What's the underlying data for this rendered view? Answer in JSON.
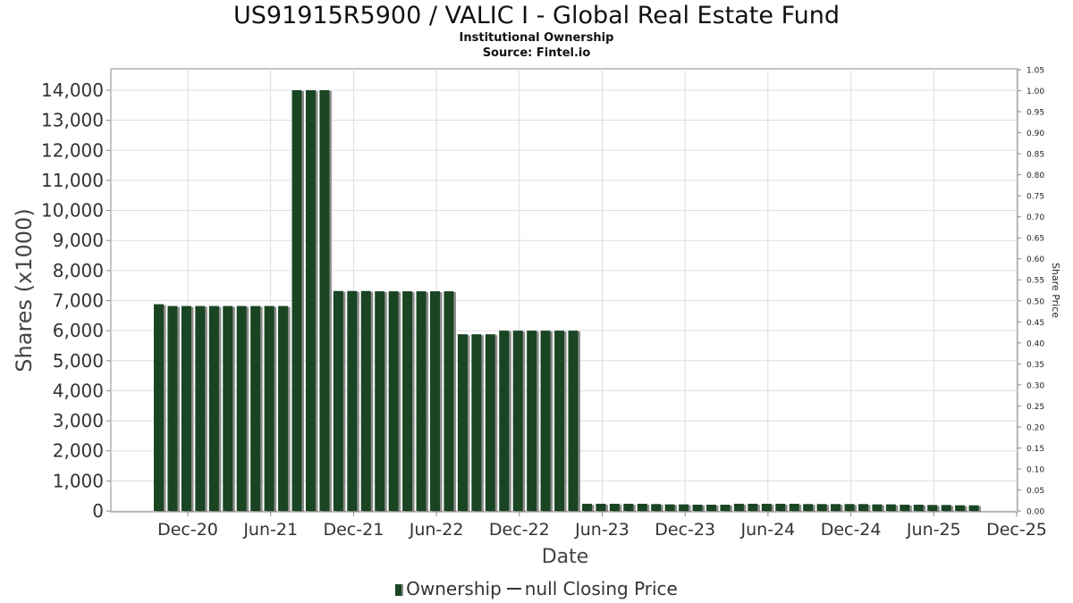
{
  "title": "US91915R5900 / VALIC I - Global Real Estate Fund",
  "subtitle": "Institutional Ownership",
  "source": "Source: Fintel.io",
  "legend": {
    "ownership_label": "Ownership",
    "price_label": "null Closing Price"
  },
  "colors": {
    "bar": "#1a4523",
    "bar_shadow": "#8c8c8c",
    "grid": "#dddddd",
    "axis": "#888888"
  },
  "chart_data": {
    "type": "bar",
    "xlabel": "Date",
    "ylabel": "Shares (x1000)",
    "y2label": "Share Price",
    "ylim": [
      0,
      14000
    ],
    "y2lim": [
      0,
      1.05
    ],
    "grid": true,
    "legend_position": "bottom",
    "x_ticks": [
      "Dec-20",
      "Jun-21",
      "Dec-21",
      "Jun-22",
      "Dec-22",
      "Jun-23",
      "Dec-23",
      "Jun-24",
      "Dec-24",
      "Jun-25",
      "Dec-25"
    ],
    "y_ticks": [
      "0",
      "1,000",
      "2,000",
      "3,000",
      "4,000",
      "5,000",
      "6,000",
      "7,000",
      "8,000",
      "9,000",
      "10,000",
      "11,000",
      "12,000",
      "13,000",
      "14,000"
    ],
    "y2_ticks": [
      "0.00",
      "0.05",
      "0.10",
      "0.15",
      "0.20",
      "0.25",
      "0.30",
      "0.35",
      "0.40",
      "0.45",
      "0.50",
      "0.55",
      "0.60",
      "0.65",
      "0.70",
      "0.75",
      "0.80",
      "0.85",
      "0.90",
      "0.95",
      "1.00",
      "1.05"
    ],
    "series": [
      {
        "name": "Ownership",
        "values": [
          6880,
          6820,
          6820,
          6820,
          6820,
          6820,
          6820,
          6820,
          6820,
          6820,
          14000,
          14000,
          14000,
          7320,
          7320,
          7320,
          7310,
          7310,
          7310,
          7310,
          7310,
          7310,
          5880,
          5880,
          5880,
          6000,
          6000,
          6000,
          6000,
          6000,
          6000,
          240,
          240,
          240,
          240,
          240,
          230,
          220,
          220,
          210,
          210,
          210,
          240,
          240,
          240,
          240,
          240,
          230,
          230,
          230,
          230,
          230,
          220,
          220,
          210,
          210,
          200,
          200,
          190,
          190
        ]
      }
    ]
  }
}
